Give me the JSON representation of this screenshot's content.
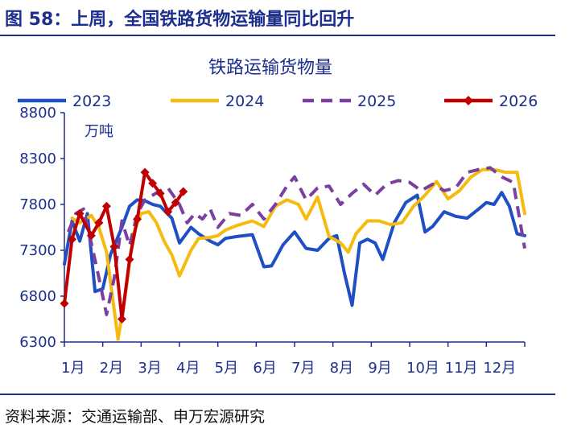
{
  "figure_title": "图 58：上周，全国铁路货物运输量同比回升",
  "source_note": "资料来源：交通运输部、申万宏源研究",
  "chart_data": {
    "type": "line",
    "title": "铁路运输货物量",
    "unit_label": "万吨",
    "ylim": [
      6300,
      8800
    ],
    "y_ticks": [
      6300,
      6800,
      7300,
      7800,
      8300,
      8800
    ],
    "x_categories": [
      "1月",
      "2月",
      "3月",
      "4月",
      "5月",
      "6月",
      "7月",
      "8月",
      "9月",
      "10月",
      "11月",
      "12月"
    ],
    "x_range": [
      1,
      13
    ],
    "legend_position": "top",
    "grid": false,
    "series": [
      {
        "name": "2023",
        "color": "#1f4fc4",
        "dash": "solid",
        "marker": "none",
        "x": [
          1.0,
          1.2,
          1.4,
          1.6,
          1.8,
          2.0,
          2.2,
          2.5,
          2.7,
          2.9,
          3.1,
          3.3,
          3.5,
          3.8,
          4.0,
          4.3,
          4.5,
          4.8,
          5.0,
          5.2,
          5.5,
          5.9,
          6.2,
          6.4,
          6.7,
          7.0,
          7.3,
          7.6,
          7.9,
          8.1,
          8.3,
          8.5,
          8.7,
          8.9,
          9.1,
          9.3,
          9.6,
          9.9,
          10.2,
          10.4,
          10.6,
          10.9,
          11.2,
          11.5,
          11.8,
          12.0,
          12.2,
          12.4,
          12.6,
          12.8,
          13.0
        ],
        "y": [
          7150,
          7620,
          7400,
          7700,
          6850,
          6880,
          7250,
          7550,
          7780,
          7850,
          7840,
          7800,
          7780,
          7650,
          7380,
          7550,
          7480,
          7400,
          7360,
          7430,
          7450,
          7470,
          7120,
          7130,
          7360,
          7500,
          7320,
          7300,
          7430,
          7460,
          7050,
          6700,
          7380,
          7420,
          7380,
          7200,
          7600,
          7820,
          7900,
          7500,
          7560,
          7720,
          7670,
          7650,
          7750,
          7820,
          7800,
          7930,
          7780,
          7480,
          7460
        ]
      },
      {
        "name": "2024",
        "color": "#f5bb10",
        "dash": "solid",
        "marker": "none",
        "x": [
          1.2,
          1.4,
          1.7,
          1.9,
          2.1,
          2.4,
          2.6,
          2.8,
          3.0,
          3.2,
          3.4,
          3.6,
          3.8,
          4.0,
          4.3,
          4.5,
          4.8,
          5.0,
          5.2,
          5.5,
          5.9,
          6.2,
          6.5,
          6.8,
          7.1,
          7.3,
          7.6,
          7.9,
          8.2,
          8.4,
          8.6,
          8.9,
          9.2,
          9.5,
          9.8,
          10.1,
          10.4,
          10.7,
          11.0,
          11.3,
          11.6,
          11.9,
          12.2,
          12.5,
          12.8,
          13.0
        ],
        "y": [
          7650,
          7600,
          7680,
          7550,
          7280,
          6330,
          6850,
          7480,
          7700,
          7720,
          7600,
          7400,
          7250,
          7020,
          7300,
          7430,
          7440,
          7460,
          7520,
          7570,
          7620,
          7560,
          7780,
          7850,
          7800,
          7640,
          7880,
          7450,
          7380,
          7280,
          7480,
          7620,
          7620,
          7580,
          7600,
          7780,
          7900,
          8050,
          7860,
          7950,
          8100,
          8180,
          8180,
          8150,
          8150,
          7700
        ]
      },
      {
        "name": "2025",
        "color": "#7b3fa0",
        "dash": "dashed",
        "marker": "none",
        "x": [
          1.1,
          1.3,
          1.5,
          1.7,
          1.9,
          2.1,
          2.3,
          2.5,
          2.7,
          2.9,
          3.1,
          3.3,
          3.5,
          3.7,
          4.0,
          4.2,
          4.4,
          4.6,
          4.8,
          5.0,
          5.3,
          5.6,
          5.9,
          6.2,
          6.5,
          6.8,
          7.0,
          7.3,
          7.6,
          7.9,
          8.2,
          8.5,
          8.8,
          9.1,
          9.4,
          9.7,
          10.0,
          10.3,
          10.6,
          10.9,
          11.2,
          11.5,
          11.8,
          12.1,
          12.4,
          12.7,
          13.0
        ],
        "y": [
          7500,
          7700,
          7750,
          7380,
          7000,
          6600,
          7000,
          7620,
          7350,
          7700,
          7850,
          7900,
          7950,
          7980,
          7800,
          7600,
          7700,
          7640,
          7750,
          7550,
          7700,
          7680,
          7800,
          7640,
          7800,
          8000,
          8100,
          7850,
          7980,
          8000,
          7800,
          7920,
          8020,
          7900,
          8020,
          8060,
          8040,
          7950,
          8020,
          7950,
          7980,
          8150,
          8180,
          8200,
          8100,
          8040,
          7320
        ]
      },
      {
        "name": "2026",
        "color": "#c00000",
        "dash": "solid",
        "marker": "diamond",
        "x": [
          1.0,
          1.2,
          1.4,
          1.7,
          1.9,
          2.1,
          2.3,
          2.5,
          2.7,
          2.9,
          3.1,
          3.3,
          3.5,
          3.7,
          3.9,
          4.1,
          4.3,
          4.5
        ],
        "y": [
          6720,
          7420,
          7700,
          7460,
          7600,
          7780,
          7340,
          6550,
          7200,
          7640,
          8150,
          8030,
          7920,
          7720,
          7820,
          7940,
          null,
          null
        ]
      }
    ]
  }
}
